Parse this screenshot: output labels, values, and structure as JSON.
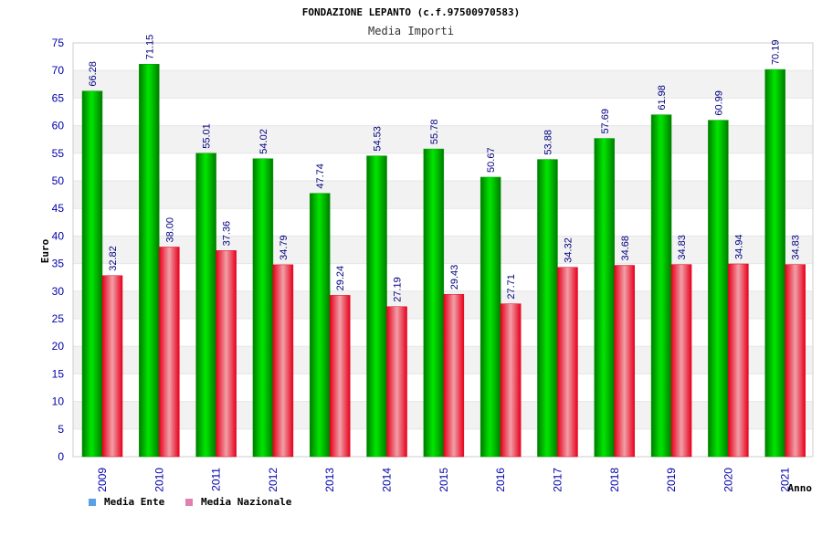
{
  "chart_data": {
    "type": "bar",
    "title": "FONDAZIONE LEPANTO (c.f.97500970583)",
    "subtitle": "Media Importi",
    "xlabel": "Anno",
    "ylabel": "Euro",
    "ylim": [
      0,
      75
    ],
    "yticks": [
      "0",
      "5",
      "10",
      "15",
      "20",
      "25",
      "30",
      "35",
      "40",
      "45",
      "50",
      "55",
      "60",
      "65",
      "70",
      "75"
    ],
    "categories": [
      "2009",
      "2010",
      "2011",
      "2012",
      "2013",
      "2014",
      "2015",
      "2016",
      "2017",
      "2018",
      "2019",
      "2020",
      "2021"
    ],
    "series": [
      {
        "name": "Media Ente",
        "color": "#00b800",
        "values": [
          66.28,
          71.15,
          55.01,
          54.02,
          47.74,
          54.53,
          55.78,
          50.67,
          53.88,
          57.69,
          61.98,
          60.99,
          70.19
        ],
        "labels": [
          "66.28",
          "71.15",
          "55.01",
          "54.02",
          "47.74",
          "54.53",
          "55.78",
          "50.67",
          "53.88",
          "57.69",
          "61.98",
          "60.99",
          "70.19"
        ]
      },
      {
        "name": "Media Nazionale",
        "color": "#e8202a",
        "values": [
          32.82,
          38.0,
          37.36,
          34.79,
          29.24,
          27.19,
          29.43,
          27.71,
          34.32,
          34.68,
          34.83,
          34.94,
          34.83
        ],
        "labels": [
          "32.82",
          "38.00",
          "37.36",
          "34.79",
          "29.24",
          "27.19",
          "29.43",
          "27.71",
          "34.32",
          "34.68",
          "34.83",
          "34.94",
          "34.83"
        ]
      }
    ],
    "legend_colors": [
      "#5aa0e6",
      "#e080b0"
    ],
    "grid": true,
    "legend_position": "bottom-left"
  }
}
